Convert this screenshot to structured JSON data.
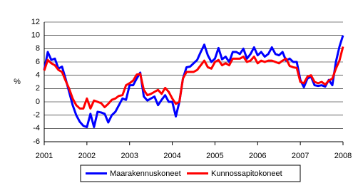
{
  "chart_data": {
    "type": "line",
    "y_label": "%",
    "categories": [
      "2001",
      null,
      null,
      null,
      null,
      null,
      null,
      null,
      null,
      null,
      null,
      null,
      "2002",
      null,
      null,
      null,
      null,
      null,
      null,
      null,
      null,
      null,
      null,
      null,
      "2003",
      null,
      null,
      null,
      null,
      null,
      null,
      null,
      null,
      null,
      null,
      null,
      "2004",
      null,
      null,
      null,
      null,
      null,
      null,
      null,
      null,
      null,
      null,
      null,
      "2005",
      null,
      null,
      null,
      null,
      null,
      null,
      null,
      null,
      null,
      null,
      null,
      "2006",
      null,
      null,
      null,
      null,
      null,
      null,
      null,
      null,
      null,
      null,
      null,
      "2007",
      null,
      null,
      null,
      null,
      null,
      null,
      null,
      null,
      null,
      null,
      null,
      "2008"
    ],
    "series": [
      {
        "name": "Maarakennuskoneet",
        "color": "#0000ff",
        "values": [
          4.8,
          7.5,
          6.3,
          6.5,
          5.0,
          5.3,
          3.5,
          1.5,
          -0.5,
          -2,
          -3,
          -3.6,
          -3.8,
          -1.8,
          -3.8,
          -1.5,
          -1.6,
          -1.8,
          -3.1,
          -2,
          -1.5,
          -0.5,
          0.5,
          0.3,
          2.5,
          2.5,
          3.5,
          4.4,
          0.8,
          0.2,
          0.5,
          0.8,
          -0.5,
          0.3,
          1.0,
          0,
          0,
          -2.2,
          0,
          3.5,
          5.2,
          5.3,
          5.8,
          6.3,
          7.5,
          8.6,
          7,
          6,
          6.5,
          8.1,
          6.4,
          6.8,
          6,
          7.5,
          7.5,
          7.2,
          8,
          6.5,
          7.2,
          8.2,
          7,
          7.5,
          6.8,
          7.2,
          8.2,
          7.2,
          7,
          7.5,
          6.2,
          6.5,
          6,
          6,
          3.3,
          2.2,
          3.5,
          3.8,
          2.5,
          2.4,
          2.5,
          2.3,
          3.3,
          2.5,
          6,
          8.3,
          10
        ]
      },
      {
        "name": "Kunnossapitokoneet",
        "color": "#ff0000",
        "values": [
          4.7,
          6.3,
          5.8,
          5.5,
          4.8,
          4.5,
          3.2,
          2,
          0.5,
          -0.5,
          -1,
          -1,
          0.5,
          -1,
          0.2,
          0,
          -0.2,
          -0.8,
          -0.3,
          0.3,
          0.5,
          0.9,
          1,
          2.5,
          2.8,
          3.2,
          4.1,
          4.2,
          1.8,
          1,
          1.2,
          1.5,
          1.8,
          1.2,
          2.1,
          1.5,
          0.5,
          -0.3,
          0,
          3.5,
          4.5,
          4.5,
          4.5,
          4.8,
          5.5,
          6.2,
          5.2,
          5,
          6,
          6.3,
          5.5,
          5.8,
          5.5,
          6.5,
          6.5,
          6.5,
          6.8,
          6,
          6.2,
          6.8,
          5.8,
          6.2,
          6,
          6.2,
          6.2,
          6,
          5.8,
          6.2,
          6.5,
          5.4,
          5.2,
          5.1,
          3,
          2.8,
          3.8,
          4,
          3,
          2.8,
          3,
          2.6,
          3.2,
          3.5,
          5,
          6.2,
          8.3
        ]
      }
    ],
    "ylim": [
      -6,
      12
    ],
    "yticks": [
      -6,
      -4,
      -2,
      0,
      2,
      4,
      6,
      8,
      10,
      12
    ],
    "grid": true
  }
}
